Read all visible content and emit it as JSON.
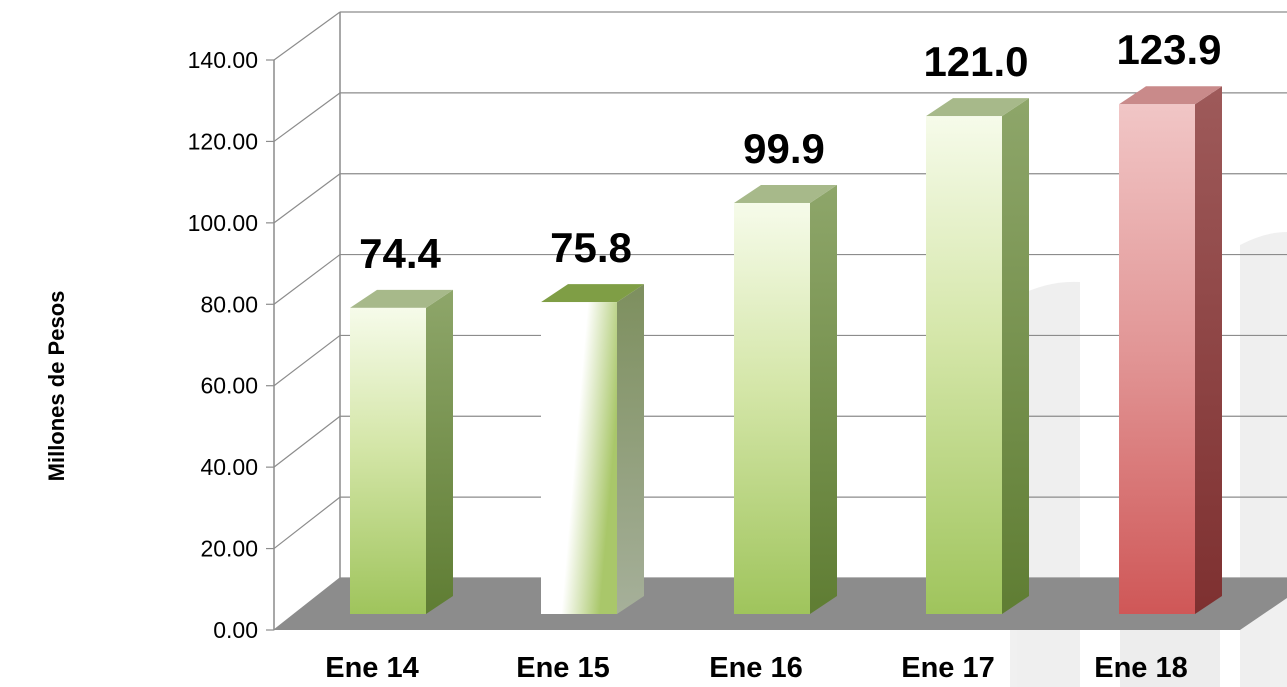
{
  "chart_data": {
    "type": "bar",
    "title": "",
    "xlabel": "",
    "ylabel": "Millones de Pesos",
    "ylim": [
      0,
      140
    ],
    "yticks": [
      "0.00",
      "20.00",
      "40.00",
      "60.00",
      "80.00",
      "100.00",
      "120.00",
      "140.00"
    ],
    "grid": true,
    "categories": [
      "Ene 14",
      "Ene 15",
      "Ene 16",
      "Ene 17",
      "Ene 18"
    ],
    "values": [
      74.4,
      75.8,
      99.9,
      121.0,
      123.9
    ],
    "value_labels": [
      "74.4",
      "75.8",
      "99.9",
      "121.0",
      "123.9"
    ],
    "bar_styles": [
      "green",
      "white-green",
      "green",
      "green",
      "red"
    ],
    "colors": {
      "green_light": "#f4f9e6",
      "green_mid": "#b9d47c",
      "green_dark": "#9cbf5a",
      "green_side": "#6e8a3a",
      "green_top": "#a3b97f",
      "red_light": "#efc0c0",
      "red_mid": "#d66a6a",
      "red_dark": "#c94d4d",
      "red_side": "#8c3a3a",
      "red_top": "#c48585",
      "floor": "#8c8c8c",
      "grid": "#8c8c8c",
      "watermark": "#ececec"
    }
  }
}
